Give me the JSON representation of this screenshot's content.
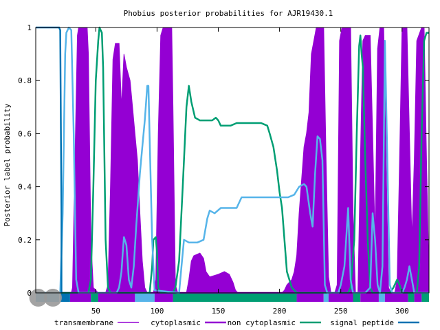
{
  "chart_data": {
    "type": "area",
    "title": "Phobius posterior probabilities for AJR19430.1",
    "xlabel": "",
    "ylabel": "Posterior label probability",
    "xlim": [
      1,
      322
    ],
    "ylim": [
      0,
      1
    ],
    "x_ticks": [
      50,
      100,
      150,
      200,
      250,
      300
    ],
    "y_ticks": [
      0,
      0.2,
      0.4,
      0.6,
      0.8,
      1
    ],
    "y_tick_labels": [
      "0",
      "0.2",
      "0.4",
      "0.6",
      "0.8",
      "1"
    ],
    "grid": false,
    "legend_position": "bottom",
    "series": [
      {
        "name": "transmembrane",
        "color": "#9400d3",
        "style": "filled",
        "points": [
          [
            1,
            0
          ],
          [
            30,
            0
          ],
          [
            31,
            0.02
          ],
          [
            33,
            0.5
          ],
          [
            35,
            0.97
          ],
          [
            36,
            1
          ],
          [
            43,
            1
          ],
          [
            44,
            0.9
          ],
          [
            46,
            0.2
          ],
          [
            48,
            0.02
          ],
          [
            52,
            0
          ],
          [
            58,
            0
          ],
          [
            60,
            0.03
          ],
          [
            62,
            0.4
          ],
          [
            64,
            0.88
          ],
          [
            66,
            0.94
          ],
          [
            69,
            0.94
          ],
          [
            71,
            0.7
          ],
          [
            73,
            0.9
          ],
          [
            75,
            0.85
          ],
          [
            78,
            0.8
          ],
          [
            80,
            0.7
          ],
          [
            82,
            0.6
          ],
          [
            84,
            0.5
          ],
          [
            86,
            0.3
          ],
          [
            88,
            0.12
          ],
          [
            90,
            0.02
          ],
          [
            92,
            0
          ],
          [
            97,
            0
          ],
          [
            99,
            0.05
          ],
          [
            101,
            0.6
          ],
          [
            103,
            0.97
          ],
          [
            105,
            1
          ],
          [
            112,
            1
          ],
          [
            113,
            0.7
          ],
          [
            115,
            0.03
          ],
          [
            117,
            0
          ],
          [
            124,
            0
          ],
          [
            126,
            0.05
          ],
          [
            128,
            0.12
          ],
          [
            130,
            0.14
          ],
          [
            135,
            0.15
          ],
          [
            138,
            0.13
          ],
          [
            140,
            0.08
          ],
          [
            143,
            0.06
          ],
          [
            150,
            0.07
          ],
          [
            155,
            0.08
          ],
          [
            159,
            0.07
          ],
          [
            162,
            0.04
          ],
          [
            164,
            0.01
          ],
          [
            166,
            0
          ],
          [
            202,
            0
          ],
          [
            204,
            0.01
          ],
          [
            206,
            0.03
          ],
          [
            210,
            0.05
          ],
          [
            212,
            0.08
          ],
          [
            214,
            0.14
          ],
          [
            216,
            0.3
          ],
          [
            220,
            0.55
          ],
          [
            222,
            0.6
          ],
          [
            224,
            0.68
          ],
          [
            226,
            0.9
          ],
          [
            228,
            0.95
          ],
          [
            230,
            1
          ],
          [
            236,
            1
          ],
          [
            238,
            0.5
          ],
          [
            240,
            0.06
          ],
          [
            242,
            0
          ],
          [
            245,
            0
          ],
          [
            247,
            0.03
          ],
          [
            249,
            0.95
          ],
          [
            251,
            1
          ],
          [
            258,
            1
          ],
          [
            260,
            0.3
          ],
          [
            262,
            0
          ],
          [
            264,
            0
          ],
          [
            266,
            0.5
          ],
          [
            268,
            0.95
          ],
          [
            270,
            0.97
          ],
          [
            274,
            0.97
          ],
          [
            276,
            0.6
          ],
          [
            278,
            0.2
          ],
          [
            280,
            0.92
          ],
          [
            282,
            1
          ],
          [
            285,
            1
          ],
          [
            287,
            0.5
          ],
          [
            289,
            0.02
          ],
          [
            291,
            0
          ],
          [
            294,
            0
          ],
          [
            296,
            0.05
          ],
          [
            298,
            0.5
          ],
          [
            300,
            1
          ],
          [
            304,
            1
          ],
          [
            306,
            0.6
          ],
          [
            308,
            0.2
          ],
          [
            310,
            0.5
          ],
          [
            312,
            0.95
          ],
          [
            316,
            1
          ],
          [
            318,
            1
          ],
          [
            320,
            0.5
          ],
          [
            322,
            0.05
          ]
        ]
      },
      {
        "name": "cytoplasmic",
        "color": "#9400d3",
        "style": "line",
        "points": [
          [
            1,
            0
          ],
          [
            322,
            0
          ]
        ]
      },
      {
        "name": "non cytoplasmic",
        "color": "#009e73",
        "style": "line",
        "points": [
          [
            1,
            0
          ],
          [
            44,
            0
          ],
          [
            46,
            0.05
          ],
          [
            48,
            0.4
          ],
          [
            50,
            0.8
          ],
          [
            52,
            0.95
          ],
          [
            53,
            1
          ],
          [
            55,
            0.98
          ],
          [
            56,
            0.85
          ],
          [
            58,
            0.2
          ],
          [
            60,
            0.02
          ],
          [
            62,
            0
          ],
          [
            94,
            0
          ],
          [
            96,
            0.1
          ],
          [
            97,
            0.2
          ],
          [
            99,
            0.21
          ],
          [
            100,
            0.15
          ],
          [
            101,
            0.02
          ],
          [
            103,
            0
          ],
          [
            113,
            0
          ],
          [
            115,
            0.02
          ],
          [
            118,
            0.12
          ],
          [
            121,
            0.4
          ],
          [
            124,
            0.7
          ],
          [
            126,
            0.78
          ],
          [
            128,
            0.72
          ],
          [
            131,
            0.66
          ],
          [
            135,
            0.65
          ],
          [
            145,
            0.65
          ],
          [
            148,
            0.66
          ],
          [
            150,
            0.65
          ],
          [
            152,
            0.63
          ],
          [
            160,
            0.63
          ],
          [
            165,
            0.64
          ],
          [
            185,
            0.64
          ],
          [
            190,
            0.63
          ],
          [
            192,
            0.6
          ],
          [
            195,
            0.55
          ],
          [
            198,
            0.46
          ],
          [
            200,
            0.38
          ],
          [
            202,
            0.32
          ],
          [
            206,
            0.08
          ],
          [
            210,
            0.02
          ],
          [
            214,
            0
          ],
          [
            256,
            0
          ],
          [
            258,
            0.02
          ],
          [
            261,
            0.2
          ],
          [
            263,
            0.6
          ],
          [
            265,
            0.93
          ],
          [
            266,
            0.97
          ],
          [
            267,
            0.9
          ],
          [
            268,
            0.85
          ],
          [
            270,
            0.5
          ],
          [
            272,
            0.2
          ],
          [
            274,
            0.02
          ],
          [
            276,
            0
          ],
          [
            290,
            0
          ],
          [
            293,
            0.02
          ],
          [
            296,
            0.05
          ],
          [
            298,
            0.03
          ],
          [
            300,
            0
          ],
          [
            312,
            0
          ],
          [
            314,
            0.1
          ],
          [
            316,
            0.6
          ],
          [
            318,
            0.95
          ],
          [
            320,
            0.98
          ],
          [
            322,
            0.98
          ]
        ]
      },
      {
        "name": "signal peptide",
        "color": "#56b4e9",
        "style": "line",
        "points": [
          [
            1,
            0
          ],
          [
            21,
            0
          ],
          [
            23,
            0.3
          ],
          [
            25,
            0.9
          ],
          [
            26,
            0.98
          ],
          [
            28,
            1
          ],
          [
            30,
            0.99
          ],
          [
            32,
            0.6
          ],
          [
            34,
            0.05
          ],
          [
            36,
            0
          ],
          [
            67,
            0
          ],
          [
            69,
            0.02
          ],
          [
            71,
            0.08
          ],
          [
            72,
            0.15
          ],
          [
            73,
            0.21
          ],
          [
            75,
            0.18
          ],
          [
            77,
            0.05
          ],
          [
            79,
            0.02
          ],
          [
            81,
            0.1
          ],
          [
            83,
            0.25
          ],
          [
            86,
            0.45
          ],
          [
            88,
            0.55
          ],
          [
            90,
            0.65
          ],
          [
            92,
            0.78
          ],
          [
            93,
            0.78
          ],
          [
            94,
            0.58
          ],
          [
            96,
            0.2
          ],
          [
            98,
            0.01
          ],
          [
            118,
            0
          ],
          [
            120,
            0.1
          ],
          [
            122,
            0.2
          ],
          [
            126,
            0.19
          ],
          [
            133,
            0.19
          ],
          [
            138,
            0.2
          ],
          [
            141,
            0.28
          ],
          [
            143,
            0.31
          ],
          [
            147,
            0.3
          ],
          [
            152,
            0.32
          ],
          [
            165,
            0.32
          ],
          [
            169,
            0.36
          ],
          [
            188,
            0.36
          ],
          [
            207,
            0.36
          ],
          [
            212,
            0.37
          ],
          [
            216,
            0.4
          ],
          [
            220,
            0.41
          ],
          [
            222,
            0.4
          ],
          [
            225,
            0.3
          ],
          [
            227,
            0.25
          ],
          [
            229,
            0.45
          ],
          [
            231,
            0.59
          ],
          [
            233,
            0.58
          ],
          [
            235,
            0.5
          ],
          [
            237,
            0.03
          ],
          [
            239,
            0
          ],
          [
            248,
            0
          ],
          [
            250,
            0.03
          ],
          [
            253,
            0.1
          ],
          [
            256,
            0.32
          ],
          [
            258,
            0.05
          ],
          [
            260,
            0
          ],
          [
            270,
            0
          ],
          [
            274,
            0.02
          ],
          [
            276,
            0.3
          ],
          [
            278,
            0.2
          ],
          [
            280,
            0.03
          ],
          [
            282,
            0
          ],
          [
            284,
            0.1
          ],
          [
            286,
            0.95
          ],
          [
            288,
            0.5
          ],
          [
            290,
            0.03
          ],
          [
            292,
            0
          ],
          [
            300,
            0
          ],
          [
            302,
            0.02
          ],
          [
            304,
            0.05
          ],
          [
            306,
            0.1
          ],
          [
            308,
            0.05
          ],
          [
            310,
            0
          ],
          [
            322,
            0
          ]
        ]
      }
    ]
  },
  "topology_bar": {
    "segments": [
      {
        "start": 1,
        "end": 20,
        "color": "#56b4e9"
      },
      {
        "start": 21,
        "end": 29,
        "color": "#0072b2"
      },
      {
        "start": 29,
        "end": 46,
        "color": "#9400d3"
      },
      {
        "start": 46,
        "end": 52,
        "color": "#009e73"
      },
      {
        "start": 52,
        "end": 82,
        "color": "#9400d3"
      },
      {
        "start": 82,
        "end": 98,
        "color": "#56b4e9"
      },
      {
        "start": 98,
        "end": 113,
        "color": "#9400d3"
      },
      {
        "start": 113,
        "end": 214,
        "color": "#009e73"
      },
      {
        "start": 214,
        "end": 236,
        "color": "#9400d3"
      },
      {
        "start": 236,
        "end": 240,
        "color": "#56b4e9"
      },
      {
        "start": 240,
        "end": 260,
        "color": "#9400d3"
      },
      {
        "start": 260,
        "end": 266,
        "color": "#009e73"
      },
      {
        "start": 266,
        "end": 281,
        "color": "#9400d3"
      },
      {
        "start": 281,
        "end": 286,
        "color": "#56b4e9"
      },
      {
        "start": 286,
        "end": 305,
        "color": "#9400d3"
      },
      {
        "start": 305,
        "end": 310,
        "color": "#009e73"
      },
      {
        "start": 310,
        "end": 316,
        "color": "#9400d3"
      },
      {
        "start": 316,
        "end": 322,
        "color": "#009e73"
      }
    ],
    "markers": [
      {
        "x": 3,
        "color": "#999999"
      },
      {
        "x": 15,
        "color": "#999999"
      }
    ]
  },
  "signal_peptide_line_color": "#0072b2"
}
